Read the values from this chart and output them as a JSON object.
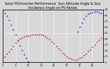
{
  "title": "Solar PV/Inverter Performance  Sun Altitude Angle & Sun Incidence Angle on PV Panels",
  "blue_color": "#0000cc",
  "red_color": "#cc0000",
  "bg_color": "#d8d8d8",
  "grid_color": "#ffffff",
  "marker_size": 1.5,
  "title_fontsize": 3.5,
  "ylim": [
    0,
    90
  ],
  "xlim_min": 0,
  "xlim_max": 47,
  "ytick_interval": 10,
  "xtick_interval": 6,
  "blue_x": [
    0,
    1,
    2,
    3,
    4,
    5,
    6,
    7,
    8,
    9,
    10,
    11,
    12,
    35,
    36,
    37,
    38,
    39,
    40,
    41,
    42,
    43,
    44,
    45,
    46
  ],
  "blue_y": [
    88,
    84,
    79,
    72,
    64,
    56,
    47,
    38,
    29,
    20,
    13,
    7,
    2,
    52,
    60,
    67,
    74,
    79,
    82,
    84,
    85,
    86,
    86,
    85,
    84
  ],
  "red_x": [
    0,
    1,
    2,
    3,
    4,
    5,
    6,
    7,
    8,
    9,
    10,
    11,
    12,
    13,
    14,
    15,
    16,
    17,
    18,
    19,
    20,
    21,
    22,
    23,
    24,
    25,
    26,
    27,
    28,
    29,
    30,
    31,
    32,
    33,
    34,
    35,
    36,
    37,
    38,
    39,
    40,
    41,
    42,
    43,
    44,
    45,
    46
  ],
  "red_y": [
    8,
    10,
    14,
    18,
    23,
    28,
    33,
    37,
    40,
    42,
    44,
    45,
    45,
    46,
    47,
    47,
    47,
    47,
    47,
    46,
    44,
    42,
    39,
    36,
    32,
    28,
    24,
    20,
    16,
    13,
    10,
    8,
    6,
    5,
    4,
    5,
    7,
    9,
    12,
    15,
    19,
    22,
    26,
    30,
    34,
    38,
    42
  ]
}
